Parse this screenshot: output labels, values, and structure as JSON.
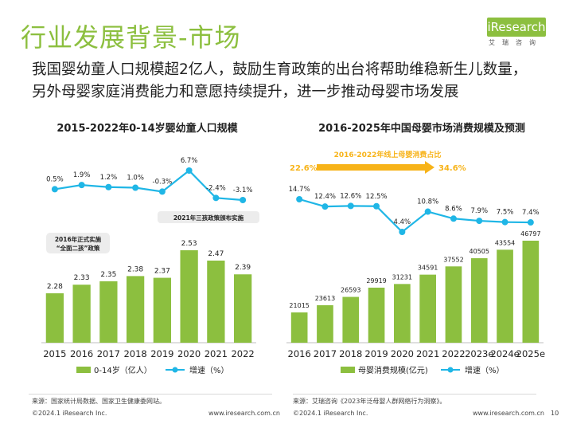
{
  "page": {
    "title": "行业发展背景-市场",
    "subtitle": "我国婴幼童人口规模超2亿人，鼓励生育政策的出台将帮助维稳新生儿数量，另外母婴家庭消费能力和意愿持续提升，进一步推动母婴市场发展",
    "logo_text": "iResearch",
    "logo_cn": "艾瑞咨询",
    "source_left": "来源：国家统计局数据、国家卫生健康委网站。",
    "source_right": "来源：艾瑞咨询《2023年泛母婴人群网络行为洞察》。",
    "copyright_left": "©2024.1 iResearch Inc.",
    "url_left": "www.iresearch.com.cn",
    "copyright_right": "©2024.1 iResearch Inc.",
    "url_right": "www.iresearch.com.cn",
    "page_number": "10",
    "colors": {
      "accent": "#8cbf3f",
      "bar": "#8cbf3f",
      "line": "#1fb6e6",
      "arrow": "#f7b318"
    }
  },
  "chart_data": [
    {
      "type": "bar+line",
      "title": "2015-2022年0-14岁婴幼童人口规模",
      "categories": [
        "2015",
        "2016",
        "2017",
        "2018",
        "2019",
        "2020",
        "2021",
        "2022"
      ],
      "bar_labels": [
        "2.28",
        "2.33",
        "2.35",
        "2.38",
        "2.37",
        "2.53",
        "2.47",
        "2.39"
      ],
      "line_labels": [
        "0.5%",
        "1.9%",
        "1.2%",
        "1.0%",
        "-0.3%",
        "6.7%",
        "-2.4%",
        "-3.1%"
      ],
      "series": [
        {
          "name": "0-14岁（亿人）",
          "kind": "bar",
          "values": [
            2.28,
            2.33,
            2.35,
            2.38,
            2.37,
            2.53,
            2.47,
            2.39
          ]
        },
        {
          "name": "增速（%）",
          "kind": "line",
          "values": [
            0.5,
            1.9,
            1.2,
            1.0,
            -0.3,
            6.7,
            -2.4,
            -3.1
          ]
        }
      ],
      "annotations": [
        {
          "text": "2016年正式实施\n“全面二孩”政策"
        },
        {
          "text": "2021年三孩政策颁布实施"
        }
      ]
    },
    {
      "type": "bar+line",
      "title": "2016-2025年中国母婴市场消费规模及预测",
      "categories": [
        "2016",
        "2017",
        "2018",
        "2019",
        "2020",
        "2021",
        "2022",
        "2023e",
        "2024e",
        "2025e"
      ],
      "bar_labels": [
        "21015",
        "23613",
        "26593",
        "29919",
        "31231",
        "34591",
        "37552",
        "40505",
        "43554",
        "46797"
      ],
      "line_labels": [
        "14.7%",
        "12.4%",
        "12.6%",
        "12.5%",
        "4.4%",
        "10.8%",
        "8.6%",
        "7.9%",
        "7.5%",
        "7.4%"
      ],
      "series": [
        {
          "name": "母婴消费规模(亿元)",
          "kind": "bar",
          "values": [
            21015,
            23613,
            26593,
            29919,
            31231,
            34591,
            37552,
            40505,
            43554,
            46797
          ]
        },
        {
          "name": "增速（%）",
          "kind": "line",
          "values": [
            14.7,
            12.4,
            12.6,
            12.5,
            4.4,
            10.8,
            8.6,
            7.9,
            7.5,
            7.4
          ]
        }
      ],
      "annotations": [
        {
          "text": "2016-2022年线上母婴消费占比"
        },
        {
          "text": "22.6%"
        },
        {
          "text": "34.6%"
        }
      ]
    }
  ]
}
